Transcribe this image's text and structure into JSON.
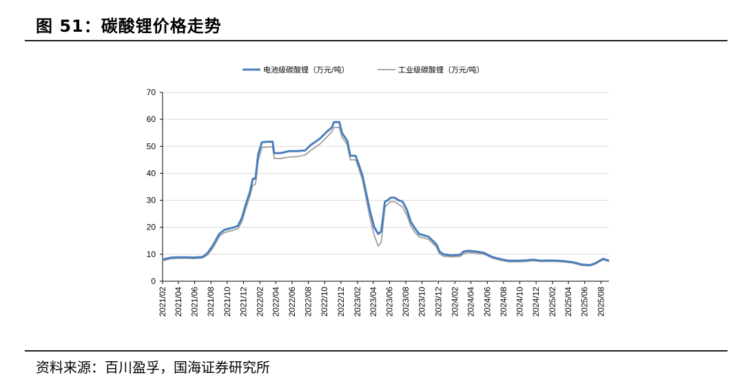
{
  "figure": {
    "title": "图 51：碳酸锂价格走势",
    "source": "资料来源：百川盈孚，国海证券研究所"
  },
  "chart_data": {
    "type": "line",
    "title": "",
    "xlabel": "",
    "ylabel": "",
    "ylim": [
      0,
      70
    ],
    "yticks": [
      0,
      10,
      20,
      30,
      40,
      50,
      60,
      70
    ],
    "xlim": [
      "2021-02",
      "2025-08"
    ],
    "xticks": [
      "2021/02",
      "2021/04",
      "2021/06",
      "2021/08",
      "2021/10",
      "2021/12",
      "2022/02",
      "2022/04",
      "2022/06",
      "2022/08",
      "2022/10",
      "2022/12",
      "2023/02",
      "2023/04",
      "2023/06",
      "2023/08",
      "2023/10",
      "2023/12",
      "2024/02",
      "2024/04",
      "2024/06",
      "2024/08",
      "2024/10",
      "2024/12",
      "2025/02",
      "2025/04",
      "2025/06",
      "2025/08"
    ],
    "grid": "horizontal",
    "legend_position": "top",
    "series": [
      {
        "name": "电池级碳酸锂（万元/吨）",
        "color": "#4a7ebb",
        "points": [
          [
            "2021-02-01",
            8.0
          ],
          [
            "2021-03-01",
            8.7
          ],
          [
            "2021-04-01",
            8.9
          ],
          [
            "2021-05-01",
            8.9
          ],
          [
            "2021-06-01",
            8.8
          ],
          [
            "2021-07-01",
            9.0
          ],
          [
            "2021-07-20",
            10.5
          ],
          [
            "2021-08-10",
            13.5
          ],
          [
            "2021-09-01",
            17.5
          ],
          [
            "2021-09-20",
            19.0
          ],
          [
            "2021-10-20",
            19.8
          ],
          [
            "2021-11-10",
            20.5
          ],
          [
            "2021-11-25",
            23.5
          ],
          [
            "2021-12-10",
            28.5
          ],
          [
            "2021-12-25",
            33.0
          ],
          [
            "2022-01-05",
            38.0
          ],
          [
            "2022-01-15",
            38.0
          ],
          [
            "2022-01-25",
            47.0
          ],
          [
            "2022-02-08",
            51.5
          ],
          [
            "2022-03-01",
            51.7
          ],
          [
            "2022-03-20",
            51.7
          ],
          [
            "2022-03-26",
            47.5
          ],
          [
            "2022-04-20",
            47.5
          ],
          [
            "2022-05-20",
            48.2
          ],
          [
            "2022-06-20",
            48.2
          ],
          [
            "2022-07-20",
            48.5
          ],
          [
            "2022-08-10",
            50.5
          ],
          [
            "2022-08-25",
            51.5
          ],
          [
            "2022-09-15",
            53.0
          ],
          [
            "2022-10-10",
            55.5
          ],
          [
            "2022-10-28",
            57.0
          ],
          [
            "2022-11-05",
            59.0
          ],
          [
            "2022-11-25",
            59.0
          ],
          [
            "2022-12-05",
            55.0
          ],
          [
            "2022-12-25",
            52.0
          ],
          [
            "2023-01-05",
            46.5
          ],
          [
            "2023-01-25",
            46.5
          ],
          [
            "2023-02-05",
            43.5
          ],
          [
            "2023-02-20",
            39.0
          ],
          [
            "2023-03-05",
            33.0
          ],
          [
            "2023-03-20",
            26.0
          ],
          [
            "2023-04-05",
            20.0
          ],
          [
            "2023-04-20",
            17.5
          ],
          [
            "2023-05-01",
            18.5
          ],
          [
            "2023-05-15",
            29.5
          ],
          [
            "2023-05-25",
            30.0
          ],
          [
            "2023-06-05",
            31.0
          ],
          [
            "2023-06-20",
            31.0
          ],
          [
            "2023-07-05",
            30.0
          ],
          [
            "2023-07-20",
            29.5
          ],
          [
            "2023-08-05",
            26.5
          ],
          [
            "2023-08-20",
            22.0
          ],
          [
            "2023-09-05",
            19.5
          ],
          [
            "2023-09-20",
            17.5
          ],
          [
            "2023-10-10",
            17.0
          ],
          [
            "2023-10-25",
            16.5
          ],
          [
            "2023-11-10",
            15.0
          ],
          [
            "2023-11-25",
            13.5
          ],
          [
            "2023-12-05",
            11.0
          ],
          [
            "2023-12-20",
            10.0
          ],
          [
            "2024-01-20",
            9.6
          ],
          [
            "2024-02-20",
            9.8
          ],
          [
            "2024-03-05",
            11.0
          ],
          [
            "2024-03-20",
            11.3
          ],
          [
            "2024-04-20",
            11.0
          ],
          [
            "2024-05-20",
            10.5
          ],
          [
            "2024-06-20",
            9.0
          ],
          [
            "2024-07-20",
            8.2
          ],
          [
            "2024-08-20",
            7.6
          ],
          [
            "2024-09-20",
            7.6
          ],
          [
            "2024-10-20",
            7.7
          ],
          [
            "2024-11-20",
            8.0
          ],
          [
            "2024-12-20",
            7.6
          ],
          [
            "2025-01-20",
            7.7
          ],
          [
            "2025-02-20",
            7.6
          ],
          [
            "2025-03-20",
            7.4
          ],
          [
            "2025-04-20",
            7.0
          ],
          [
            "2025-05-20",
            6.2
          ],
          [
            "2025-06-20",
            6.0
          ],
          [
            "2025-07-10",
            6.6
          ],
          [
            "2025-07-25",
            7.5
          ],
          [
            "2025-08-10",
            8.3
          ],
          [
            "2025-08-31",
            7.6
          ]
        ]
      },
      {
        "name": "工业级碳酸锂（万元/吨）",
        "color": "#a6a6a6",
        "points": [
          [
            "2021-02-01",
            7.6
          ],
          [
            "2021-03-01",
            8.3
          ],
          [
            "2021-04-01",
            8.5
          ],
          [
            "2021-05-01",
            8.5
          ],
          [
            "2021-06-01",
            8.4
          ],
          [
            "2021-07-01",
            8.6
          ],
          [
            "2021-07-20",
            9.8
          ],
          [
            "2021-08-10",
            12.5
          ],
          [
            "2021-09-01",
            16.5
          ],
          [
            "2021-09-20",
            18.0
          ],
          [
            "2021-10-20",
            18.8
          ],
          [
            "2021-11-10",
            19.5
          ],
          [
            "2021-11-25",
            22.0
          ],
          [
            "2021-12-10",
            27.0
          ],
          [
            "2021-12-25",
            31.5
          ],
          [
            "2022-01-05",
            35.5
          ],
          [
            "2022-01-15",
            36.0
          ],
          [
            "2022-01-25",
            44.5
          ],
          [
            "2022-02-08",
            49.5
          ],
          [
            "2022-03-01",
            49.8
          ],
          [
            "2022-03-20",
            49.8
          ],
          [
            "2022-03-26",
            45.5
          ],
          [
            "2022-04-20",
            45.5
          ],
          [
            "2022-05-20",
            46.0
          ],
          [
            "2022-06-20",
            46.2
          ],
          [
            "2022-07-20",
            46.8
          ],
          [
            "2022-08-10",
            48.5
          ],
          [
            "2022-08-25",
            49.5
          ],
          [
            "2022-09-15",
            51.0
          ],
          [
            "2022-10-10",
            53.5
          ],
          [
            "2022-10-28",
            55.5
          ],
          [
            "2022-11-05",
            57.0
          ],
          [
            "2022-11-25",
            57.0
          ],
          [
            "2022-12-05",
            53.5
          ],
          [
            "2022-12-25",
            50.5
          ],
          [
            "2023-01-05",
            45.0
          ],
          [
            "2023-01-25",
            45.0
          ],
          [
            "2023-02-05",
            42.0
          ],
          [
            "2023-02-20",
            37.5
          ],
          [
            "2023-03-05",
            31.0
          ],
          [
            "2023-03-20",
            23.5
          ],
          [
            "2023-04-05",
            17.0
          ],
          [
            "2023-04-20",
            13.0
          ],
          [
            "2023-05-01",
            14.5
          ],
          [
            "2023-05-15",
            27.5
          ],
          [
            "2023-05-25",
            28.5
          ],
          [
            "2023-06-05",
            29.5
          ],
          [
            "2023-06-20",
            29.5
          ],
          [
            "2023-07-05",
            28.5
          ],
          [
            "2023-07-20",
            27.5
          ],
          [
            "2023-08-05",
            24.5
          ],
          [
            "2023-08-20",
            20.5
          ],
          [
            "2023-09-05",
            18.0
          ],
          [
            "2023-09-20",
            16.5
          ],
          [
            "2023-10-10",
            16.0
          ],
          [
            "2023-10-25",
            15.5
          ],
          [
            "2023-11-10",
            14.0
          ],
          [
            "2023-11-25",
            12.5
          ],
          [
            "2023-12-05",
            10.2
          ],
          [
            "2023-12-20",
            9.3
          ],
          [
            "2024-01-20",
            9.0
          ],
          [
            "2024-02-20",
            9.2
          ],
          [
            "2024-03-05",
            10.2
          ],
          [
            "2024-03-20",
            10.6
          ],
          [
            "2024-04-20",
            10.4
          ],
          [
            "2024-05-20",
            10.0
          ],
          [
            "2024-06-20",
            8.6
          ],
          [
            "2024-07-20",
            7.8
          ],
          [
            "2024-08-20",
            7.2
          ],
          [
            "2024-09-20",
            7.2
          ],
          [
            "2024-10-20",
            7.3
          ],
          [
            "2024-11-20",
            7.6
          ],
          [
            "2024-12-20",
            7.3
          ],
          [
            "2025-01-20",
            7.4
          ],
          [
            "2025-02-20",
            7.3
          ],
          [
            "2025-03-20",
            7.1
          ],
          [
            "2025-04-20",
            6.7
          ],
          [
            "2025-05-20",
            5.9
          ],
          [
            "2025-06-20",
            5.7
          ],
          [
            "2025-07-10",
            6.3
          ],
          [
            "2025-07-25",
            7.2
          ],
          [
            "2025-08-10",
            8.0
          ],
          [
            "2025-08-31",
            7.3
          ]
        ]
      }
    ]
  }
}
